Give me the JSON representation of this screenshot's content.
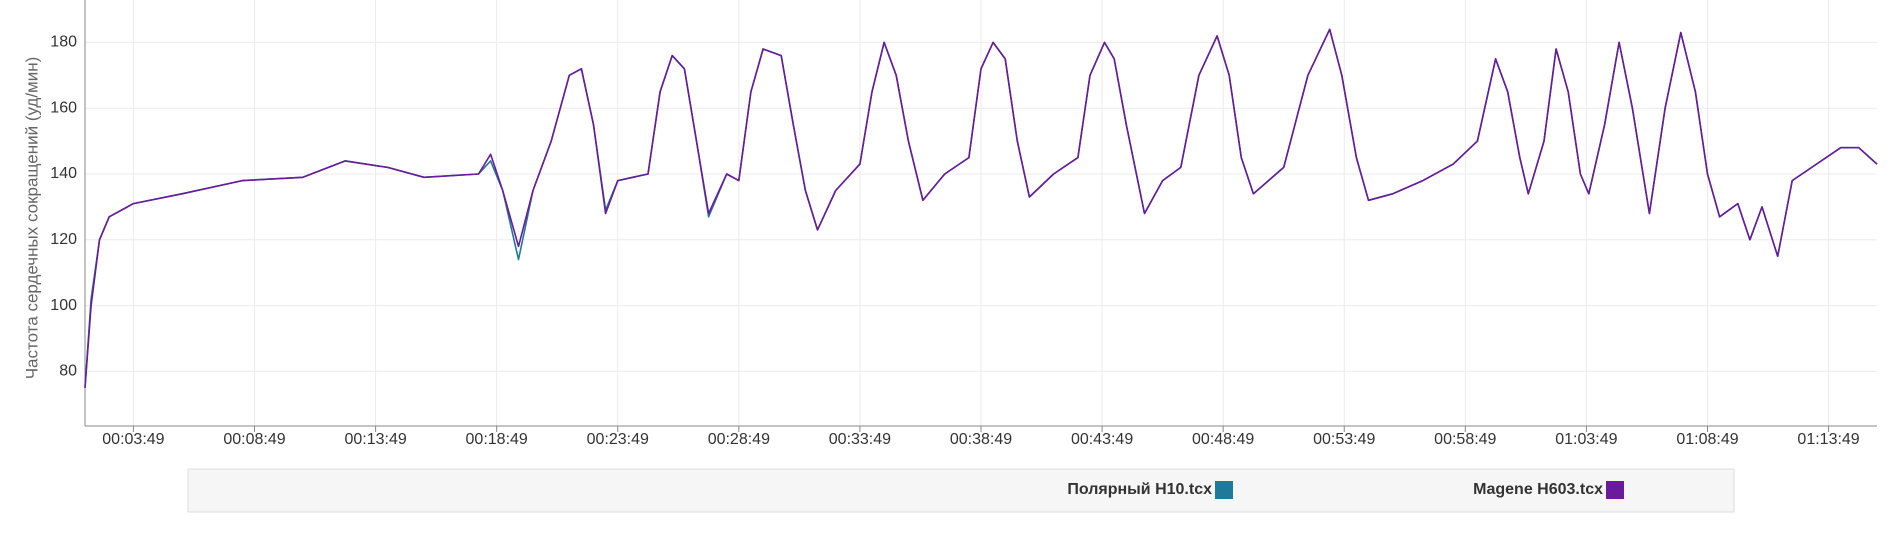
{
  "chart_data": {
    "type": "line",
    "y_label": "Частота сердечных сокращений (уд/мин)",
    "x": [
      109,
      124,
      145,
      169,
      229,
      349,
      499,
      649,
      754,
      859,
      949,
      1084,
      1114,
      1144,
      1183,
      1219,
      1264,
      1309,
      1339,
      1369,
      1399,
      1429,
      1504,
      1534,
      1564,
      1594,
      1624,
      1654,
      1699,
      1729,
      1759,
      1789,
      1834,
      1864,
      1894,
      1924,
      1969,
      2029,
      2059,
      2089,
      2119,
      2149,
      2185,
      2239,
      2299,
      2329,
      2359,
      2389,
      2419,
      2449,
      2509,
      2569,
      2599,
      2635,
      2659,
      2689,
      2734,
      2779,
      2824,
      2869,
      2914,
      2944,
      2974,
      3004,
      3079,
      3139,
      3193,
      3223,
      3259,
      3289,
      3349,
      3424,
      3499,
      3559,
      3604,
      3634,
      3664,
      3685,
      3724,
      3754,
      3784,
      3814,
      3835,
      3874,
      3910,
      3943,
      3985,
      4024,
      4063,
      4099,
      4129,
      4159,
      4204,
      4234,
      4264,
      4303,
      4339,
      4399,
      4459,
      4504,
      4549
    ],
    "series": [
      {
        "name": "Полярный H10.tcx",
        "color": "#1f7a99",
        "values": [
          75,
          102,
          120,
          127,
          131,
          134,
          138,
          139,
          144,
          142,
          139,
          140,
          144,
          135,
          114,
          135,
          150,
          170,
          172,
          155,
          129,
          138,
          140,
          165,
          176,
          172,
          150,
          127,
          140,
          138,
          165,
          178,
          176,
          155,
          135,
          123,
          135,
          143,
          165,
          180,
          170,
          150,
          132,
          140,
          145,
          172,
          180,
          175,
          150,
          133,
          140,
          145,
          170,
          180,
          175,
          155,
          128,
          138,
          142,
          170,
          182,
          170,
          145,
          134,
          142,
          170,
          184,
          170,
          145,
          132,
          134,
          138,
          143,
          150,
          175,
          165,
          145,
          134,
          150,
          178,
          165,
          140,
          134,
          155,
          180,
          160,
          128,
          160,
          183,
          165,
          140,
          127,
          131,
          120,
          130,
          115,
          138,
          143,
          148,
          148,
          143
        ]
      },
      {
        "name": "Magene H603.tcx",
        "color": "#6a1b9a",
        "values": [
          75,
          100,
          120,
          127,
          131,
          134,
          138,
          139,
          144,
          142,
          139,
          140,
          146,
          135,
          118,
          135,
          150,
          170,
          172,
          155,
          128,
          138,
          140,
          165,
          176,
          172,
          150,
          128,
          140,
          138,
          165,
          178,
          176,
          155,
          135,
          123,
          135,
          143,
          165,
          180,
          170,
          150,
          132,
          140,
          145,
          172,
          180,
          175,
          150,
          133,
          140,
          145,
          170,
          180,
          175,
          155,
          128,
          138,
          142,
          170,
          182,
          170,
          145,
          134,
          142,
          170,
          184,
          170,
          145,
          132,
          134,
          138,
          143,
          150,
          175,
          165,
          145,
          134,
          150,
          178,
          165,
          140,
          134,
          155,
          180,
          160,
          128,
          160,
          183,
          165,
          140,
          127,
          131,
          120,
          130,
          115,
          138,
          143,
          148,
          148,
          143
        ]
      }
    ],
    "xlim": [
      109,
      4549
    ],
    "xticks": [
      {
        "value": 229,
        "label": "00:03:49"
      },
      {
        "value": 529,
        "label": "00:08:49"
      },
      {
        "value": 829,
        "label": "00:13:49"
      },
      {
        "value": 1129,
        "label": "00:18:49"
      },
      {
        "value": 1429,
        "label": "00:23:49"
      },
      {
        "value": 1729,
        "label": "00:28:49"
      },
      {
        "value": 2029,
        "label": "00:33:49"
      },
      {
        "value": 2329,
        "label": "00:38:49"
      },
      {
        "value": 2629,
        "label": "00:43:49"
      },
      {
        "value": 2929,
        "label": "00:48:49"
      },
      {
        "value": 3229,
        "label": "00:53:49"
      },
      {
        "value": 3529,
        "label": "00:58:49"
      },
      {
        "value": 3829,
        "label": "01:03:49"
      },
      {
        "value": 4129,
        "label": "01:08:49"
      },
      {
        "value": 4429,
        "label": "01:13:49"
      }
    ],
    "ylim": [
      63.4,
      192.9
    ],
    "yticks": [
      80,
      100,
      120,
      140,
      160,
      180
    ],
    "grid": true
  }
}
